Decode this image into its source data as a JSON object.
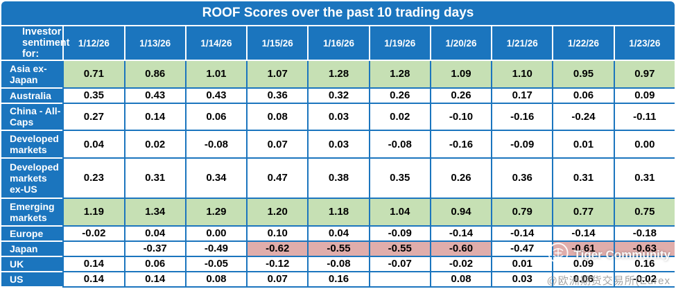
{
  "title": "ROOF Scores over the past 10 trading days",
  "header": {
    "label_col": "Investor sentiment for:",
    "dates": [
      "1/12/26",
      "1/13/26",
      "1/14/26",
      "1/15/26",
      "1/16/26",
      "1/19/26",
      "1/20/26",
      "1/21/26",
      "1/22/26",
      "1/23/26"
    ]
  },
  "rows": [
    {
      "label": "Asia ex-Japan",
      "row_highlight": "green",
      "cell_highlights": [],
      "values": [
        "0.71",
        "0.86",
        "1.01",
        "1.07",
        "1.28",
        "1.28",
        "1.09",
        "1.10",
        "0.95",
        "0.97"
      ]
    },
    {
      "label": "Australia",
      "row_highlight": "",
      "cell_highlights": [],
      "values": [
        "0.35",
        "0.43",
        "0.43",
        "0.36",
        "0.32",
        "0.26",
        "0.26",
        "0.17",
        "0.06",
        "0.09"
      ]
    },
    {
      "label": "China - All-Caps",
      "row_highlight": "",
      "cell_highlights": [],
      "values": [
        "0.27",
        "0.14",
        "0.06",
        "0.08",
        "0.03",
        "0.02",
        "-0.10",
        "-0.16",
        "-0.24",
        "-0.11"
      ]
    },
    {
      "label": "Developed markets",
      "row_highlight": "",
      "cell_highlights": [],
      "values": [
        "0.04",
        "0.02",
        "-0.08",
        "0.07",
        "0.03",
        "-0.08",
        "-0.16",
        "-0.09",
        "0.01",
        "0.00"
      ]
    },
    {
      "label": "Developed markets ex-US",
      "row_highlight": "",
      "cell_highlights": [],
      "values": [
        "0.23",
        "0.31",
        "0.34",
        "0.47",
        "0.38",
        "0.35",
        "0.26",
        "0.36",
        "0.31",
        "0.31"
      ]
    },
    {
      "label": "Emerging markets",
      "row_highlight": "green",
      "cell_highlights": [],
      "values": [
        "1.19",
        "1.34",
        "1.29",
        "1.20",
        "1.18",
        "1.04",
        "0.94",
        "0.79",
        "0.77",
        "0.75"
      ]
    },
    {
      "label": "Europe",
      "row_highlight": "",
      "cell_highlights": [],
      "values": [
        "-0.02",
        "0.04",
        "0.00",
        "0.10",
        "0.04",
        "-0.09",
        "-0.14",
        "-0.14",
        "-0.14",
        "-0.18"
      ]
    },
    {
      "label": "Japan",
      "row_highlight": "",
      "cell_highlights": [
        3,
        4,
        5,
        6,
        8,
        9
      ],
      "values": [
        "",
        "-0.37",
        "-0.49",
        "-0.62",
        "-0.55",
        "-0.55",
        "-0.60",
        "-0.47",
        "-0.61",
        "-0.63"
      ]
    },
    {
      "label": "UK",
      "row_highlight": "",
      "cell_highlights": [],
      "values": [
        "0.14",
        "0.06",
        "-0.05",
        "-0.12",
        "-0.08",
        "-0.07",
        "-0.02",
        "0.01",
        "0.09",
        "0.16"
      ]
    },
    {
      "label": "US",
      "row_highlight": "",
      "cell_highlights": [],
      "values": [
        "0.14",
        "0.14",
        "0.08",
        "0.07",
        "0.16",
        "",
        "0.08",
        "0.03",
        "0.06",
        "-0.02"
      ]
    }
  ],
  "colors": {
    "table_blue": "#1B75BE",
    "green_highlight": "#C6E0B4",
    "red_highlight": "#E0ADAB",
    "text_on_blue": "#FFFFFF",
    "value_text": "#000000"
  },
  "watermark": {
    "logo_icon": "tiger-logo-icon",
    "name": "Tiger Community",
    "sub": "@欧洲期货交易所(Eurex"
  },
  "chart_data": {
    "type": "table",
    "title": "ROOF Scores over the past 10 trading days",
    "row_header": "Investor sentiment for:",
    "columns": [
      "1/12/26",
      "1/13/26",
      "1/14/26",
      "1/15/26",
      "1/16/26",
      "1/19/26",
      "1/20/26",
      "1/21/26",
      "1/22/26",
      "1/23/26"
    ],
    "series": [
      {
        "name": "Asia ex-Japan",
        "values": [
          0.71,
          0.86,
          1.01,
          1.07,
          1.28,
          1.28,
          1.09,
          1.1,
          0.95,
          0.97
        ]
      },
      {
        "name": "Australia",
        "values": [
          0.35,
          0.43,
          0.43,
          0.36,
          0.32,
          0.26,
          0.26,
          0.17,
          0.06,
          0.09
        ]
      },
      {
        "name": "China - All-Caps",
        "values": [
          0.27,
          0.14,
          0.06,
          0.08,
          0.03,
          0.02,
          -0.1,
          -0.16,
          -0.24,
          -0.11
        ]
      },
      {
        "name": "Developed markets",
        "values": [
          0.04,
          0.02,
          -0.08,
          0.07,
          0.03,
          -0.08,
          -0.16,
          -0.09,
          0.01,
          0.0
        ]
      },
      {
        "name": "Developed markets ex-US",
        "values": [
          0.23,
          0.31,
          0.34,
          0.47,
          0.38,
          0.35,
          0.26,
          0.36,
          0.31,
          0.31
        ]
      },
      {
        "name": "Emerging markets",
        "values": [
          1.19,
          1.34,
          1.29,
          1.2,
          1.18,
          1.04,
          0.94,
          0.79,
          0.77,
          0.75
        ]
      },
      {
        "name": "Europe",
        "values": [
          -0.02,
          0.04,
          0.0,
          0.1,
          0.04,
          -0.09,
          -0.14,
          -0.14,
          -0.14,
          -0.18
        ]
      },
      {
        "name": "Japan",
        "values": [
          null,
          -0.37,
          -0.49,
          -0.62,
          -0.55,
          -0.55,
          -0.6,
          -0.47,
          -0.61,
          -0.63
        ]
      },
      {
        "name": "UK",
        "values": [
          0.14,
          0.06,
          -0.05,
          -0.12,
          -0.08,
          -0.07,
          -0.02,
          0.01,
          0.09,
          0.16
        ]
      },
      {
        "name": "US",
        "values": [
          0.14,
          0.14,
          0.08,
          0.07,
          0.16,
          null,
          0.08,
          0.03,
          0.06,
          -0.02
        ]
      }
    ],
    "highlights": {
      "green_rows": [
        "Asia ex-Japan",
        "Emerging markets"
      ],
      "red_cells": {
        "Japan": [
          "1/15/26",
          "1/16/26",
          "1/19/26",
          "1/20/26",
          "1/22/26",
          "1/23/26"
        ]
      }
    }
  }
}
